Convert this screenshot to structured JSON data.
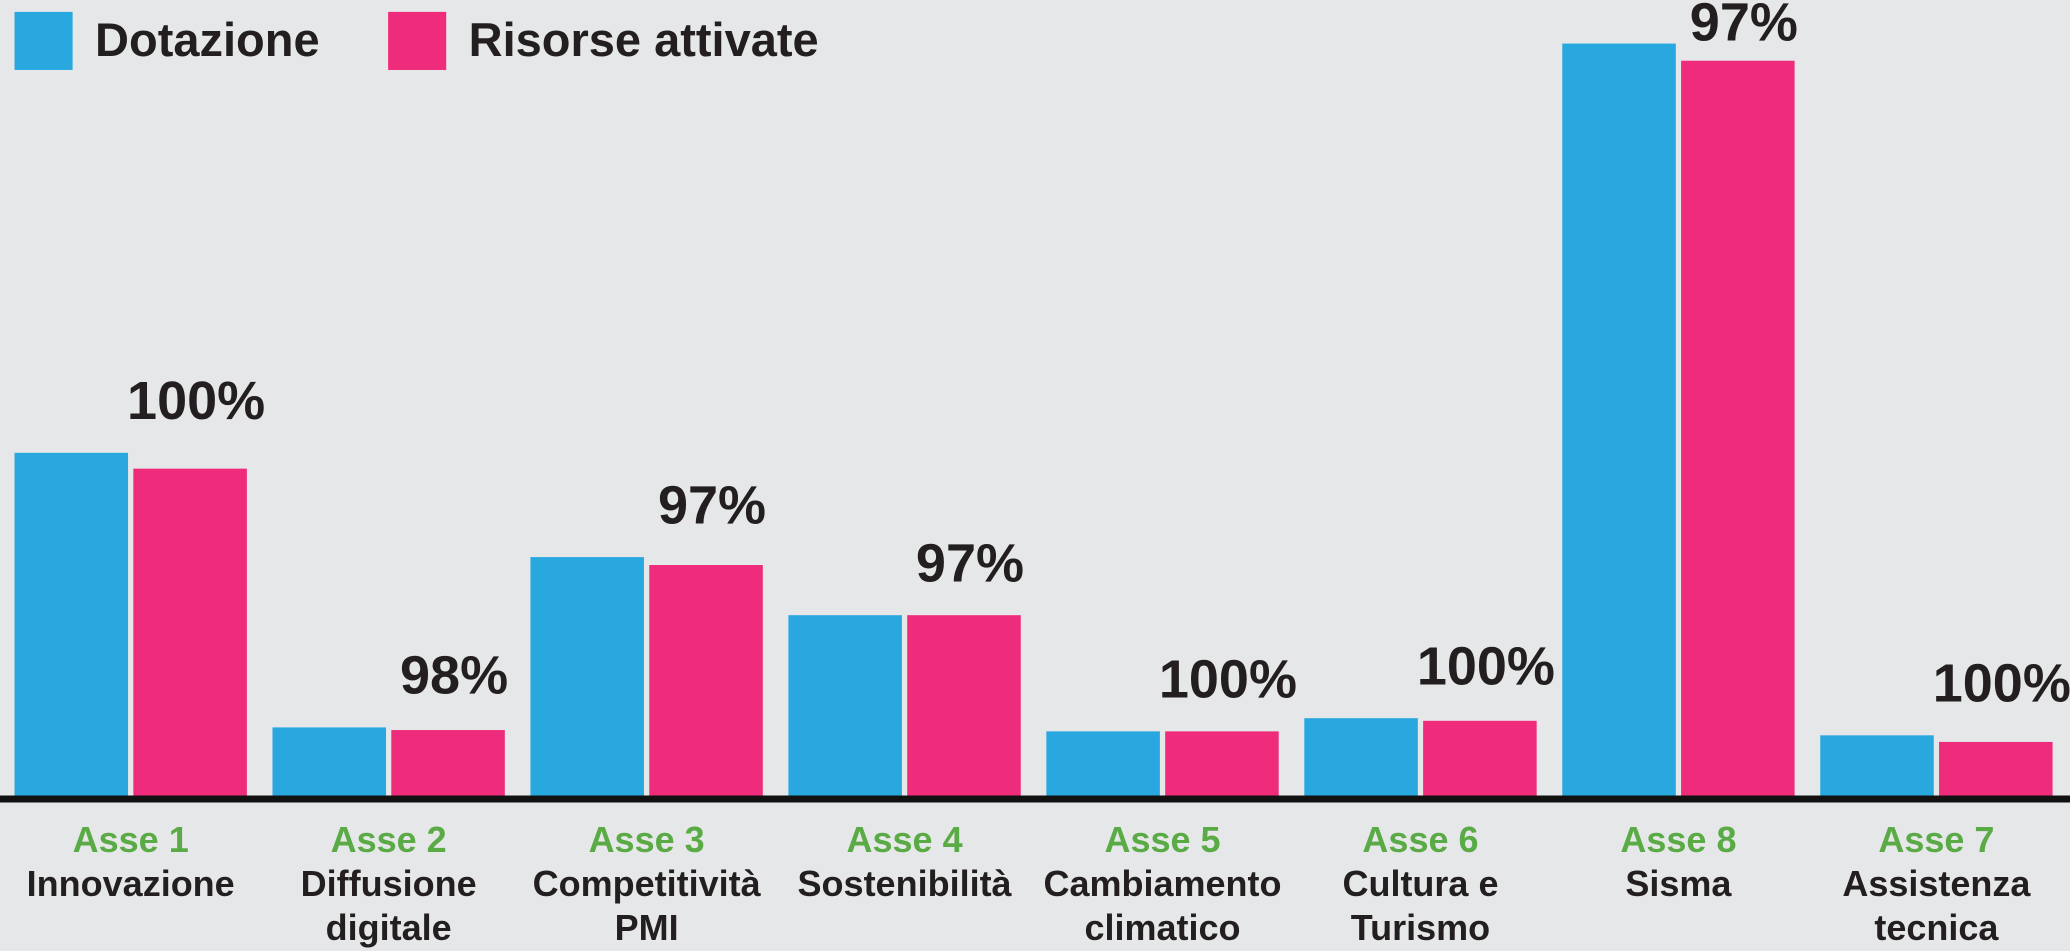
{
  "chart_data": {
    "type": "bar",
    "categories": [
      "Asse 1",
      "Asse 2",
      "Asse 3",
      "Asse 4",
      "Asse 5",
      "Asse 6",
      "Asse 8",
      "Asse 7"
    ],
    "category_names": [
      "Innovazione",
      "Diffusione digitale",
      "Competitività PMI",
      "Sostenibilità",
      "Cambiamento climatico",
      "Cultura e Turismo",
      "Sisma",
      "Assistenza tecnica"
    ],
    "series": [
      {
        "name": "Dotazione",
        "color": "#29a8e0",
        "values": [
          260,
          52,
          181,
          137,
          49,
          59,
          570,
          46
        ]
      },
      {
        "name": "Risorse attivate",
        "color": "#ef2b7c",
        "values": [
          248,
          50,
          175,
          137,
          49,
          57,
          557,
          41
        ]
      }
    ],
    "ratio_labels": [
      "100%",
      "98%",
      "97%",
      "97%",
      "100%",
      "100%",
      "97%",
      "100%"
    ],
    "ylim": [
      0,
      603
    ],
    "legend": "top-left"
  }
}
